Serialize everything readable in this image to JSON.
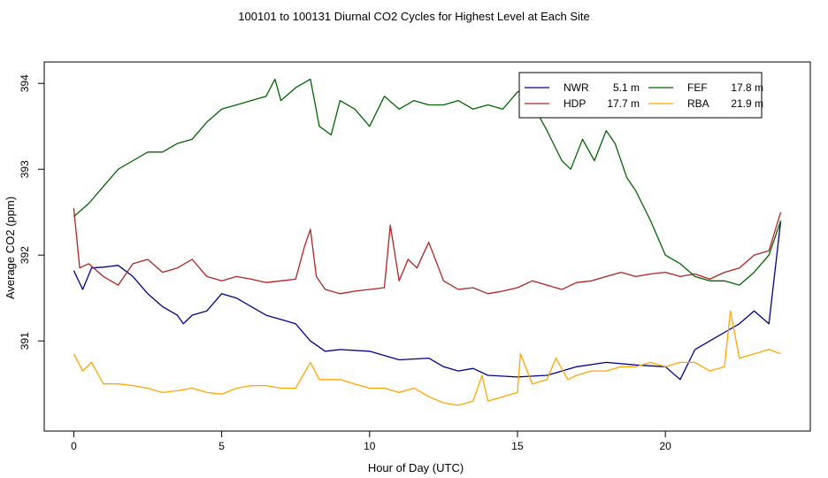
{
  "chart_data": {
    "type": "line",
    "title": "100101  to  100131 Diurnal CO2 Cycles for Highest Level at Each Site",
    "xlabel": "Hour of Day (UTC)",
    "ylabel": "Average CO2 (ppm)",
    "xlim": [
      -1,
      24.9
    ],
    "ylim": [
      389.95,
      394.25
    ],
    "xticks": [
      0,
      5,
      10,
      15,
      20
    ],
    "yticks": [
      391,
      392,
      393,
      394
    ],
    "grid": false,
    "legend_position": "top-right",
    "series": [
      {
        "name": "NWR",
        "height": "5.1 m",
        "color": "#00008b",
        "x": [
          0,
          0.3,
          0.6,
          1.0,
          1.5,
          2.0,
          2.5,
          3.0,
          3.5,
          3.7,
          4.0,
          4.5,
          5.0,
          5.5,
          6.0,
          6.5,
          7.0,
          7.5,
          8.0,
          8.5,
          9.0,
          10.0,
          11.0,
          12.0,
          12.5,
          13.0,
          13.5,
          14.0,
          15.0,
          16.0,
          17.0,
          18.0,
          19.0,
          20.0,
          20.5,
          21.0,
          21.5,
          22.0,
          22.5,
          23.0,
          23.5,
          23.9
        ],
        "values": [
          391.82,
          391.6,
          391.85,
          391.86,
          391.88,
          391.75,
          391.55,
          391.4,
          391.3,
          391.2,
          391.3,
          391.35,
          391.55,
          391.5,
          391.4,
          391.3,
          391.25,
          391.2,
          391.0,
          390.88,
          390.9,
          390.88,
          390.78,
          390.8,
          390.7,
          390.65,
          390.68,
          390.6,
          390.58,
          390.6,
          390.7,
          390.75,
          390.72,
          390.7,
          390.55,
          390.9,
          391.0,
          391.1,
          391.2,
          391.35,
          391.2,
          392.4
        ]
      },
      {
        "name": "HDP",
        "height": "17.7 m",
        "color": "#b22222",
        "x": [
          0,
          0.2,
          0.5,
          1.0,
          1.5,
          2.0,
          2.5,
          3.0,
          3.5,
          4.0,
          4.5,
          5.0,
          5.5,
          6.0,
          6.5,
          7.0,
          7.5,
          7.8,
          8.0,
          8.2,
          8.5,
          9.0,
          9.5,
          10.0,
          10.5,
          10.7,
          11.0,
          11.3,
          11.6,
          12.0,
          12.5,
          13.0,
          13.5,
          14.0,
          14.5,
          15.0,
          15.5,
          16.0,
          16.5,
          17.0,
          17.5,
          18.0,
          18.5,
          19.0,
          19.5,
          20.0,
          20.5,
          21.0,
          21.5,
          22.0,
          22.5,
          23.0,
          23.5,
          23.9
        ],
        "values": [
          392.55,
          391.85,
          391.9,
          391.75,
          391.65,
          391.9,
          391.95,
          391.8,
          391.85,
          391.95,
          391.75,
          391.7,
          391.75,
          391.72,
          391.68,
          391.7,
          391.72,
          392.1,
          392.3,
          391.75,
          391.6,
          391.55,
          391.58,
          391.6,
          391.62,
          392.35,
          391.7,
          391.95,
          391.85,
          392.15,
          391.7,
          391.6,
          391.62,
          391.55,
          391.58,
          391.62,
          391.7,
          391.65,
          391.6,
          391.68,
          391.7,
          391.75,
          391.8,
          391.75,
          391.78,
          391.8,
          391.75,
          391.78,
          391.72,
          391.8,
          391.85,
          392.0,
          392.05,
          392.5
        ]
      },
      {
        "name": "FEF",
        "height": "17.8 m",
        "color": "#006400",
        "x": [
          0,
          0.5,
          1.0,
          1.5,
          2.0,
          2.5,
          3.0,
          3.5,
          4.0,
          4.5,
          5.0,
          5.5,
          6.0,
          6.5,
          6.8,
          7.0,
          7.5,
          8.0,
          8.3,
          8.7,
          9.0,
          9.5,
          10.0,
          10.5,
          11.0,
          11.5,
          12.0,
          12.5,
          13.0,
          13.5,
          14.0,
          14.5,
          15.0,
          15.3,
          15.6,
          16.0,
          16.5,
          16.8,
          17.2,
          17.6,
          18.0,
          18.3,
          18.7,
          19.0,
          19.5,
          20.0,
          20.5,
          21.0,
          21.5,
          22.0,
          22.5,
          23.0,
          23.5,
          23.9
        ],
        "values": [
          392.45,
          392.6,
          392.8,
          393.0,
          393.1,
          393.2,
          393.2,
          393.3,
          393.35,
          393.55,
          393.7,
          393.75,
          393.8,
          393.85,
          394.05,
          393.8,
          393.95,
          394.05,
          393.5,
          393.4,
          393.8,
          393.7,
          393.5,
          393.85,
          393.7,
          393.8,
          393.75,
          393.75,
          393.8,
          393.7,
          393.75,
          393.7,
          393.9,
          393.95,
          393.7,
          393.45,
          393.1,
          393.0,
          393.35,
          393.1,
          393.45,
          393.3,
          392.9,
          392.75,
          392.4,
          392.0,
          391.9,
          391.75,
          391.7,
          391.7,
          391.65,
          391.8,
          392.0,
          392.4
        ]
      },
      {
        "name": "RBA",
        "height": "21.9 m",
        "color": "#ffa500",
        "x": [
          0,
          0.3,
          0.6,
          1.0,
          1.5,
          2.0,
          2.5,
          3.0,
          3.5,
          4.0,
          4.5,
          5.0,
          5.5,
          6.0,
          6.5,
          7.0,
          7.5,
          8.0,
          8.3,
          8.5,
          9.0,
          9.5,
          10.0,
          10.5,
          11.0,
          11.5,
          12.0,
          12.5,
          13.0,
          13.5,
          13.8,
          14.0,
          14.5,
          15.0,
          15.1,
          15.5,
          16.0,
          16.3,
          16.7,
          17.0,
          17.5,
          18.0,
          18.5,
          19.0,
          19.5,
          20.0,
          20.5,
          21.0,
          21.5,
          22.0,
          22.2,
          22.5,
          23.0,
          23.5,
          23.9
        ],
        "values": [
          390.85,
          390.65,
          390.75,
          390.5,
          390.5,
          390.48,
          390.45,
          390.4,
          390.42,
          390.45,
          390.4,
          390.38,
          390.45,
          390.48,
          390.48,
          390.45,
          390.45,
          390.75,
          390.55,
          390.55,
          390.55,
          390.5,
          390.45,
          390.45,
          390.4,
          390.45,
          390.35,
          390.28,
          390.25,
          390.3,
          390.6,
          390.3,
          390.35,
          390.4,
          390.85,
          390.5,
          390.55,
          390.8,
          390.55,
          390.6,
          390.65,
          390.65,
          390.7,
          390.7,
          390.75,
          390.7,
          390.75,
          390.75,
          390.65,
          390.7,
          391.35,
          390.8,
          390.85,
          390.9,
          390.85
        ]
      }
    ]
  }
}
